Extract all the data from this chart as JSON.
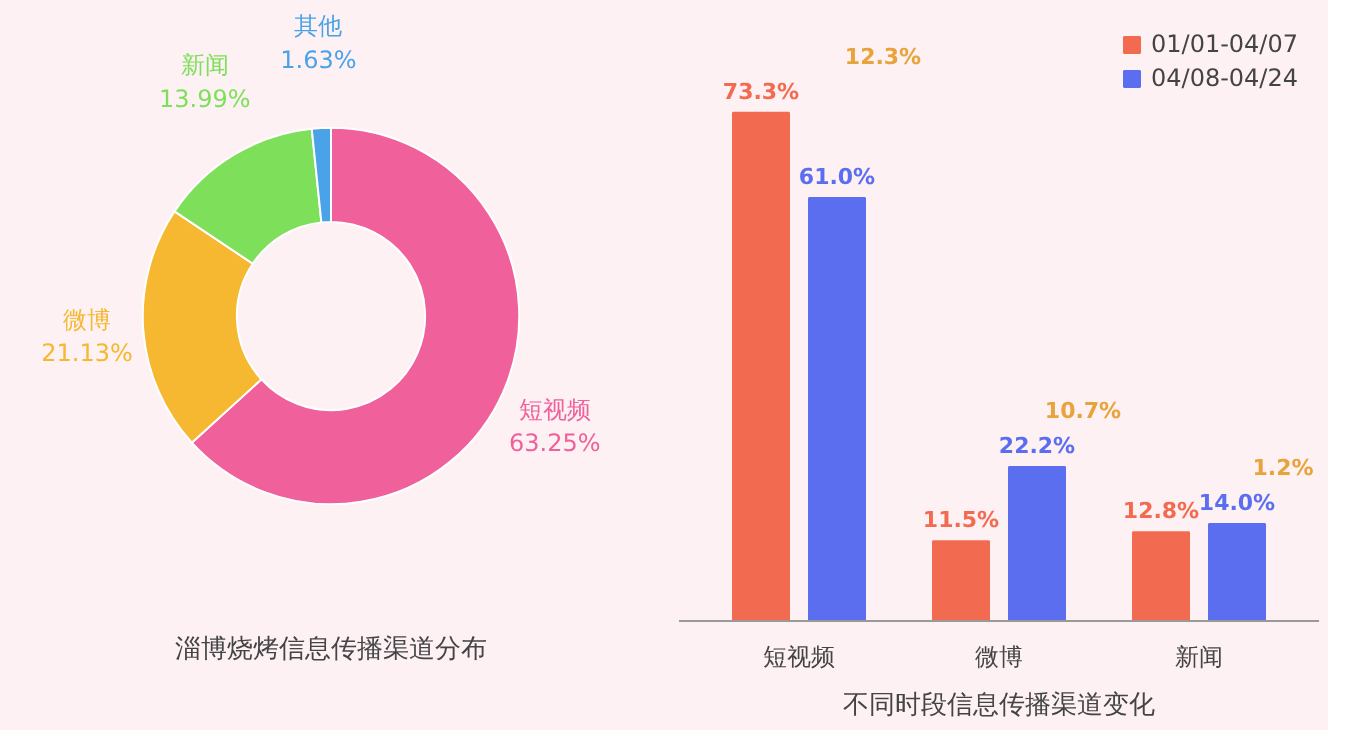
{
  "chart_data": [
    {
      "type": "donut",
      "title": "淄博烧烤信息传播渠道分布",
      "categories": [
        "短视频",
        "微博",
        "新闻",
        "其他"
      ],
      "values": [
        63.25,
        21.13,
        13.99,
        1.63
      ],
      "value_labels": [
        "63.25%",
        "21.13%",
        "13.99%",
        "1.63%"
      ],
      "colors": [
        "#f0609a",
        "#f5b830",
        "#7ee05a",
        "#4aa3e8"
      ]
    },
    {
      "type": "bar",
      "title": "不同时段信息传播渠道变化",
      "categories": [
        "短视频",
        "微博",
        "新闻"
      ],
      "series": [
        {
          "name": "01/01-04/07",
          "color": "#f26a4f",
          "values": [
            73.3,
            11.5,
            12.8
          ],
          "value_labels": [
            "73.3%",
            "11.5%",
            "12.8%"
          ]
        },
        {
          "name": "04/08-04/24",
          "color": "#5b6ef0",
          "values": [
            61.0,
            22.2,
            14.0
          ],
          "value_labels": [
            "61.0%",
            "22.2%",
            "14.0%"
          ]
        }
      ],
      "annotations": [
        "12.3%",
        "10.7%",
        "1.2%"
      ],
      "legend": "top right",
      "grid": false
    }
  ]
}
